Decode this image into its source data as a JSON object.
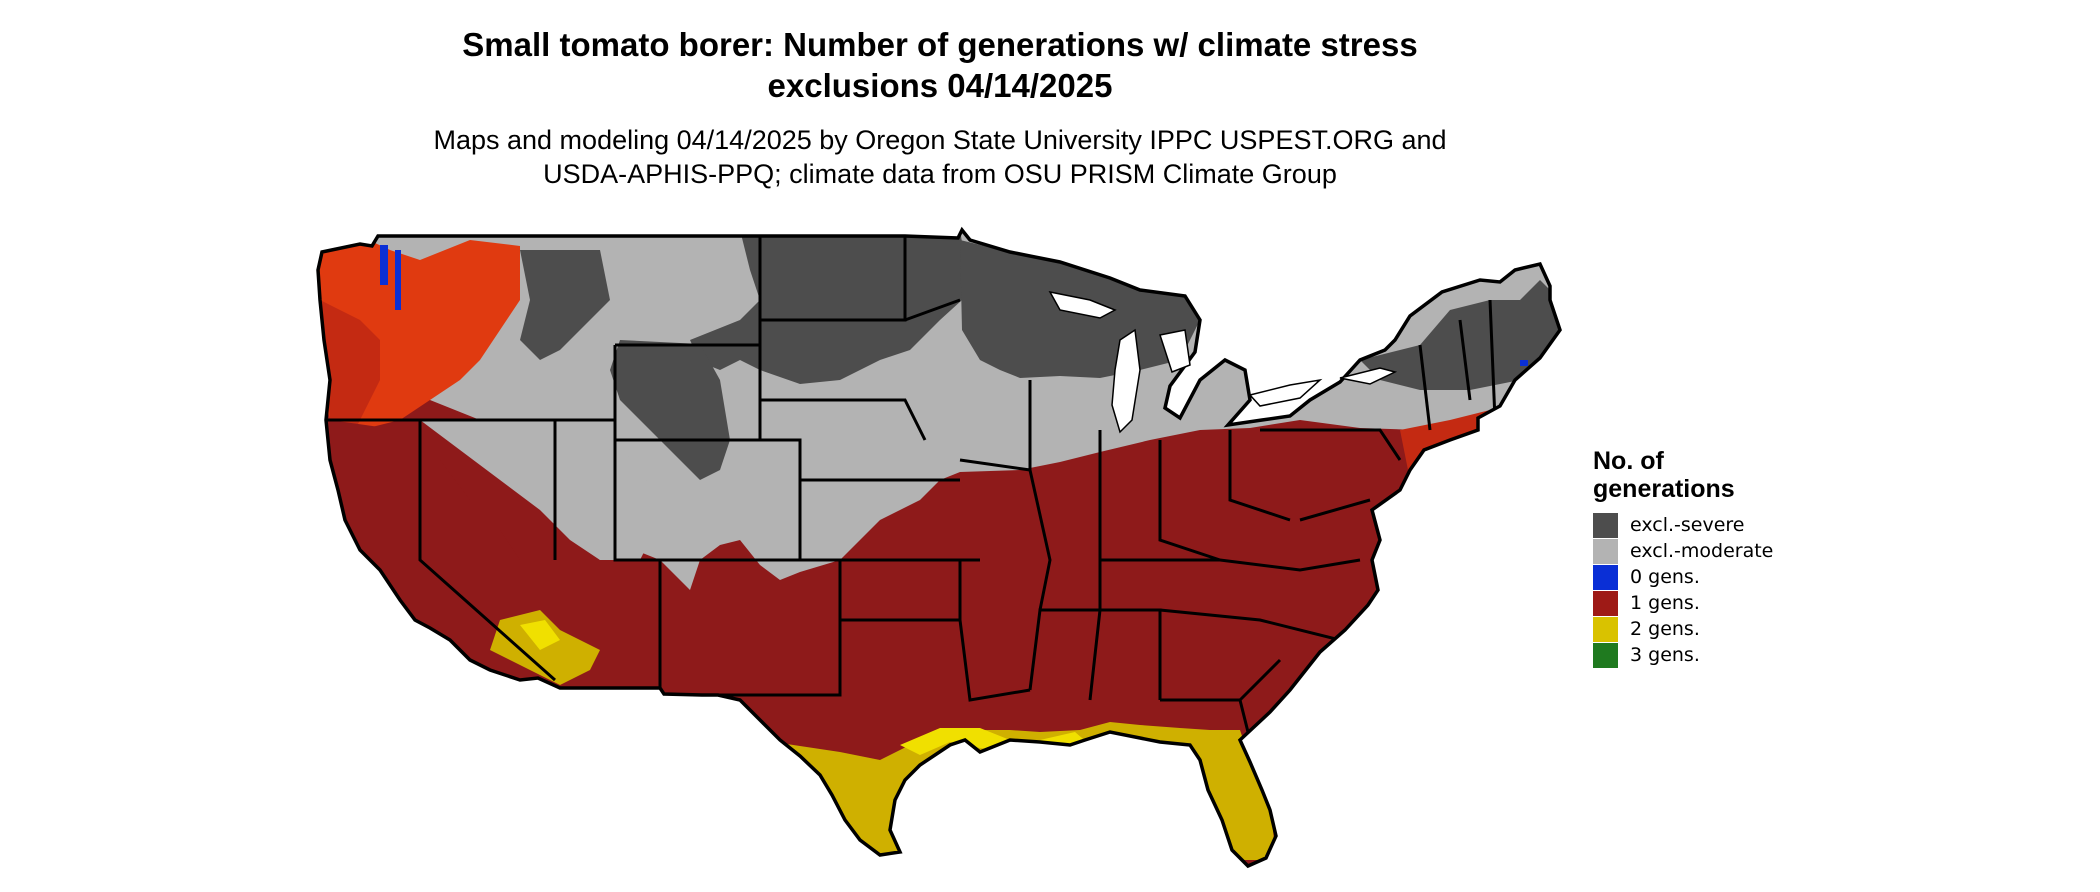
{
  "title": {
    "line1": "Small tomato borer: Number of generations w/ climate stress",
    "line2": "exclusions 04/14/2025"
  },
  "subtitle": {
    "line1": "Maps and modeling 04/14/2025 by Oregon State University IPPC USPEST.ORG and",
    "line2": "USDA-APHIS-PPQ; climate data from OSU PRISM Climate Group"
  },
  "legend": {
    "title_line1": "No. of",
    "title_line2": "generations",
    "items": [
      {
        "label": "excl.-severe",
        "color": "#4d4d4d"
      },
      {
        "label": "excl.-moderate",
        "color": "#b3b3b3"
      },
      {
        "label": "0 gens.",
        "color": "#0a2fd6"
      },
      {
        "label": "1 gens.",
        "color": "#9e1a16"
      },
      {
        "label": "2 gens.",
        "color": "#d9c200"
      },
      {
        "label": "3 gens.",
        "color": "#1f7a1f"
      }
    ]
  },
  "map": {
    "region": "Contiguous United States",
    "colors": {
      "severe": "#4d4d4d",
      "moderate": "#b3b3b3",
      "zero": "#0a2fd6",
      "one": "#8e1a1a",
      "one_light": "#e03a10",
      "two": "#cfb000",
      "two_light": "#f0e000",
      "three": "#1f7a1f",
      "borders": "#000000"
    }
  }
}
